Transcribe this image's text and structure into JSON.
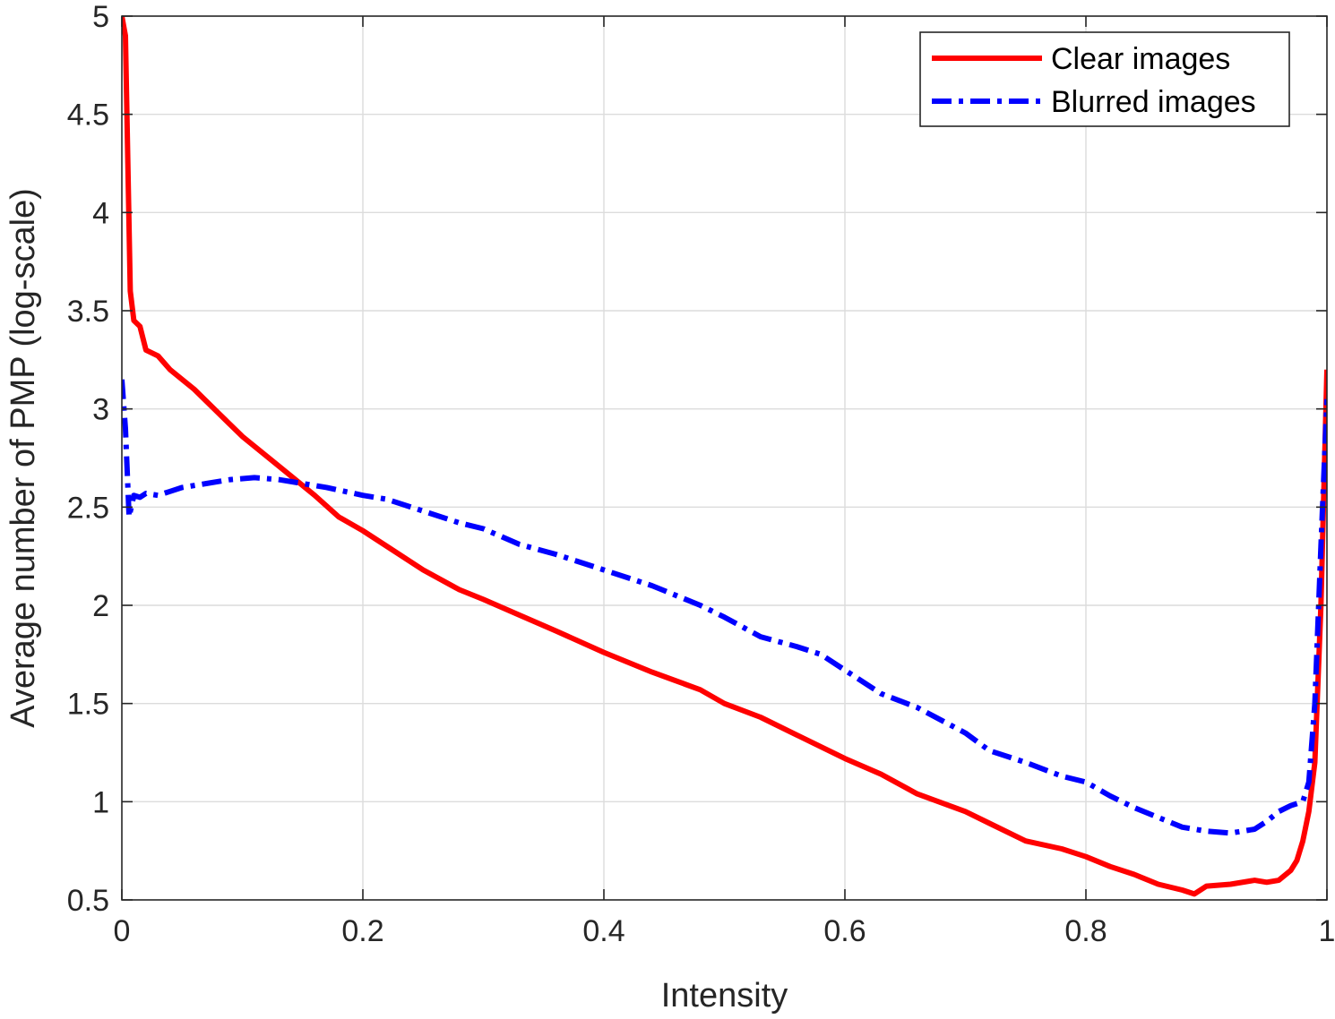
{
  "chart_data": {
    "type": "line",
    "title": "",
    "xlabel": "Intensity",
    "ylabel": "Average number of PMP (log-scale)",
    "xlim": [
      0,
      1
    ],
    "ylim": [
      0.5,
      5
    ],
    "xticks": [
      "0",
      "0.2",
      "0.4",
      "0.6",
      "0.8",
      "1"
    ],
    "yticks": [
      "0.5",
      "1",
      "1.5",
      "2",
      "2.5",
      "3",
      "3.5",
      "4",
      "4.5",
      "5"
    ],
    "grid": true,
    "legend_position": "top-right",
    "series": [
      {
        "name": "Clear images",
        "color": "#ff0000",
        "line_style": "solid",
        "x": [
          0,
          0.003,
          0.007,
          0.01,
          0.015,
          0.02,
          0.03,
          0.04,
          0.05,
          0.06,
          0.08,
          0.1,
          0.12,
          0.14,
          0.16,
          0.18,
          0.2,
          0.22,
          0.25,
          0.28,
          0.3,
          0.33,
          0.36,
          0.4,
          0.44,
          0.48,
          0.5,
          0.53,
          0.56,
          0.6,
          0.63,
          0.66,
          0.7,
          0.72,
          0.75,
          0.78,
          0.8,
          0.82,
          0.84,
          0.86,
          0.88,
          0.89,
          0.9,
          0.92,
          0.94,
          0.95,
          0.96,
          0.97,
          0.975,
          0.98,
          0.985,
          0.99,
          0.995,
          1.0
        ],
        "values": [
          5.0,
          4.9,
          3.6,
          3.45,
          3.42,
          3.3,
          3.27,
          3.2,
          3.15,
          3.1,
          2.98,
          2.86,
          2.76,
          2.66,
          2.56,
          2.45,
          2.38,
          2.3,
          2.18,
          2.08,
          2.03,
          1.95,
          1.87,
          1.76,
          1.66,
          1.57,
          1.5,
          1.43,
          1.34,
          1.22,
          1.14,
          1.04,
          0.95,
          0.89,
          0.8,
          0.76,
          0.72,
          0.67,
          0.63,
          0.58,
          0.55,
          0.53,
          0.57,
          0.58,
          0.6,
          0.59,
          0.6,
          0.65,
          0.7,
          0.8,
          0.95,
          1.2,
          2.0,
          3.2
        ]
      },
      {
        "name": "Blurred images",
        "color": "#0000ff",
        "line_style": "dashdot",
        "x": [
          0,
          0.003,
          0.006,
          0.01,
          0.015,
          0.02,
          0.03,
          0.04,
          0.05,
          0.07,
          0.09,
          0.11,
          0.13,
          0.15,
          0.17,
          0.2,
          0.22,
          0.25,
          0.28,
          0.3,
          0.33,
          0.36,
          0.4,
          0.44,
          0.48,
          0.5,
          0.53,
          0.56,
          0.58,
          0.6,
          0.63,
          0.66,
          0.7,
          0.72,
          0.75,
          0.78,
          0.8,
          0.82,
          0.84,
          0.86,
          0.88,
          0.9,
          0.92,
          0.94,
          0.95,
          0.96,
          0.97,
          0.98,
          0.985,
          0.99,
          0.995,
          1.0
        ],
        "values": [
          3.15,
          2.9,
          2.45,
          2.56,
          2.55,
          2.57,
          2.56,
          2.58,
          2.6,
          2.62,
          2.64,
          2.65,
          2.64,
          2.62,
          2.6,
          2.56,
          2.54,
          2.48,
          2.42,
          2.39,
          2.31,
          2.26,
          2.18,
          2.1,
          2.0,
          1.94,
          1.84,
          1.79,
          1.75,
          1.67,
          1.55,
          1.48,
          1.35,
          1.26,
          1.2,
          1.13,
          1.1,
          1.03,
          0.97,
          0.92,
          0.87,
          0.85,
          0.84,
          0.86,
          0.9,
          0.95,
          0.98,
          1.0,
          1.1,
          1.5,
          2.3,
          3.05
        ]
      }
    ]
  }
}
